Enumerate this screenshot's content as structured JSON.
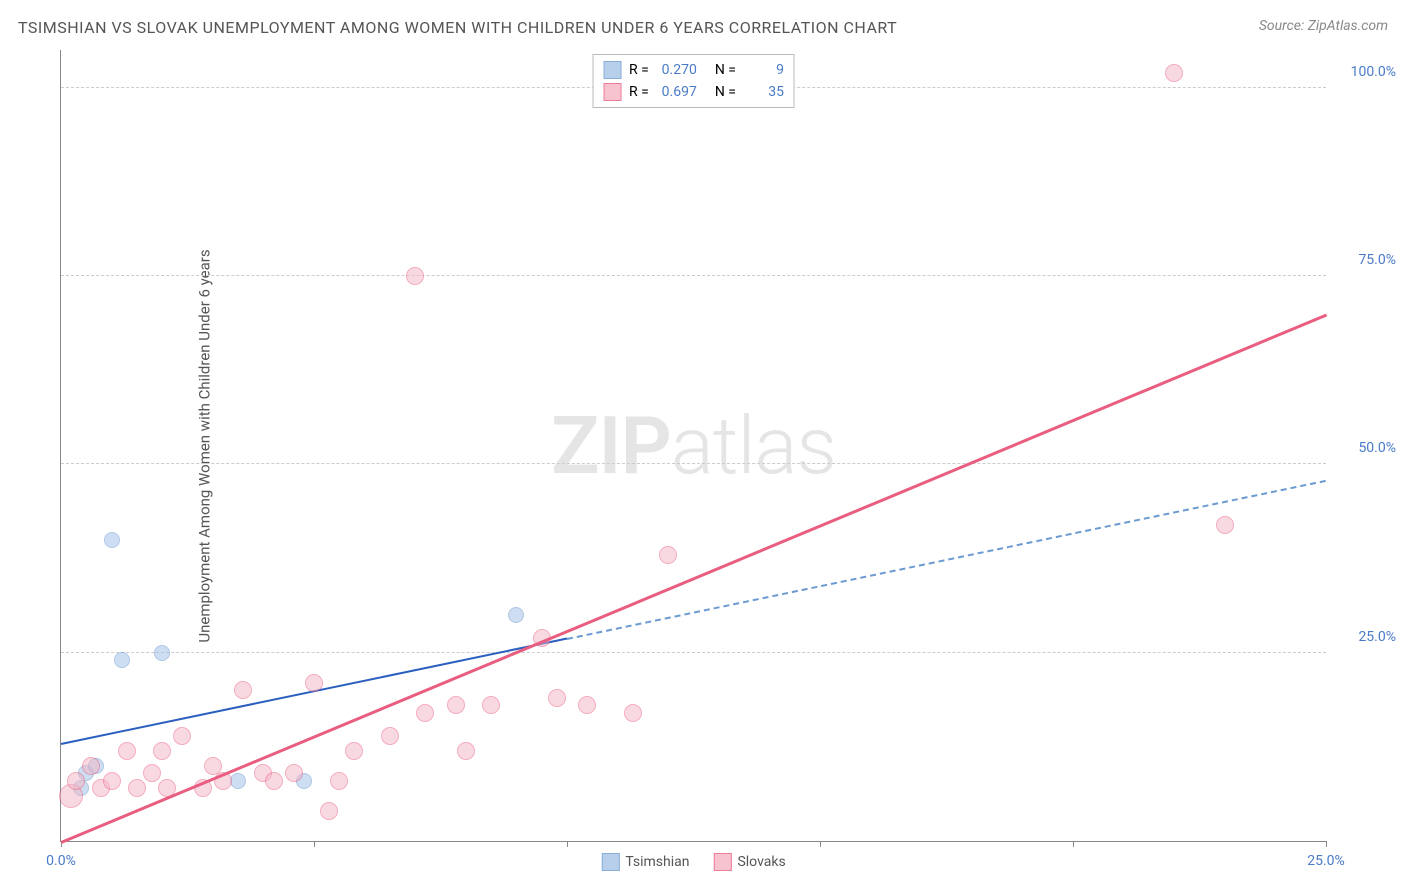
{
  "title": "TSIMSHIAN VS SLOVAK UNEMPLOYMENT AMONG WOMEN WITH CHILDREN UNDER 6 YEARS CORRELATION CHART",
  "source": "Source: ZipAtlas.com",
  "y_axis_label": "Unemployment Among Women with Children Under 6 years",
  "watermark_bold": "ZIP",
  "watermark_rest": "atlas",
  "chart": {
    "type": "scatter",
    "xlim": [
      0,
      25
    ],
    "ylim": [
      0,
      105
    ],
    "x_ticks": [
      0,
      5,
      10,
      15,
      20,
      25
    ],
    "x_tick_labels": {
      "0": "0.0%",
      "25": "25.0%"
    },
    "y_ticks": [
      25,
      50,
      75,
      100
    ],
    "y_tick_labels": {
      "25": "25.0%",
      "50": "50.0%",
      "75": "75.0%",
      "100": "100.0%"
    },
    "background_color": "#ffffff",
    "grid_color": "#cccccc",
    "axis_color": "#888888",
    "tick_label_color": "#4a7bc8",
    "series": [
      {
        "name": "Tsimshian",
        "fill": "#a7c4e8",
        "fill_opacity": 0.55,
        "stroke": "#6b9bd1",
        "marker_radius": 8,
        "R": "0.270",
        "N": "9",
        "trend": {
          "x1": 0,
          "y1": 13,
          "x2": 25,
          "y2": 48,
          "solid_until_x": 10,
          "color_solid": "#2b5fbf",
          "color_dash": "#6b9bd1",
          "width": 2
        },
        "points": [
          {
            "x": 0.4,
            "y": 7
          },
          {
            "x": 0.5,
            "y": 9
          },
          {
            "x": 0.7,
            "y": 10
          },
          {
            "x": 1.0,
            "y": 40
          },
          {
            "x": 1.2,
            "y": 24
          },
          {
            "x": 2.0,
            "y": 25
          },
          {
            "x": 3.5,
            "y": 8
          },
          {
            "x": 4.8,
            "y": 8
          },
          {
            "x": 9.0,
            "y": 30
          }
        ]
      },
      {
        "name": "Slovaks",
        "fill": "#f5b5c4",
        "fill_opacity": 0.5,
        "stroke": "#e85d80",
        "marker_radius": 9,
        "R": "0.697",
        "N": "35",
        "trend": {
          "x1": 0,
          "y1": 0,
          "x2": 25,
          "y2": 70,
          "solid_until_x": 25,
          "color_solid": "#e85d80",
          "width": 2.5
        },
        "points": [
          {
            "x": 0.2,
            "y": 6,
            "r": 12
          },
          {
            "x": 0.3,
            "y": 8
          },
          {
            "x": 0.6,
            "y": 10
          },
          {
            "x": 0.8,
            "y": 7
          },
          {
            "x": 1.0,
            "y": 8
          },
          {
            "x": 1.3,
            "y": 12
          },
          {
            "x": 1.5,
            "y": 7
          },
          {
            "x": 1.8,
            "y": 9
          },
          {
            "x": 2.0,
            "y": 12
          },
          {
            "x": 2.1,
            "y": 7
          },
          {
            "x": 2.4,
            "y": 14
          },
          {
            "x": 2.8,
            "y": 7
          },
          {
            "x": 3.0,
            "y": 10
          },
          {
            "x": 3.2,
            "y": 8
          },
          {
            "x": 3.6,
            "y": 20
          },
          {
            "x": 4.0,
            "y": 9
          },
          {
            "x": 4.2,
            "y": 8
          },
          {
            "x": 4.6,
            "y": 9
          },
          {
            "x": 5.0,
            "y": 21
          },
          {
            "x": 5.3,
            "y": 4
          },
          {
            "x": 5.5,
            "y": 8
          },
          {
            "x": 5.8,
            "y": 12
          },
          {
            "x": 6.5,
            "y": 14
          },
          {
            "x": 7.0,
            "y": 75
          },
          {
            "x": 7.2,
            "y": 17
          },
          {
            "x": 7.8,
            "y": 18
          },
          {
            "x": 8.0,
            "y": 12
          },
          {
            "x": 8.5,
            "y": 18
          },
          {
            "x": 9.5,
            "y": 27
          },
          {
            "x": 9.8,
            "y": 19
          },
          {
            "x": 10.4,
            "y": 18
          },
          {
            "x": 11.3,
            "y": 17
          },
          {
            "x": 12.0,
            "y": 38
          },
          {
            "x": 22.0,
            "y": 102
          },
          {
            "x": 23.0,
            "y": 42
          }
        ]
      }
    ]
  },
  "legend_top": {
    "R_label": "R =",
    "N_label": "N ="
  },
  "legend_bottom": [
    {
      "label": "Tsimshian",
      "fill": "#a7c4e8",
      "stroke": "#6b9bd1"
    },
    {
      "label": "Slovaks",
      "fill": "#f5b5c4",
      "stroke": "#e85d80"
    }
  ]
}
